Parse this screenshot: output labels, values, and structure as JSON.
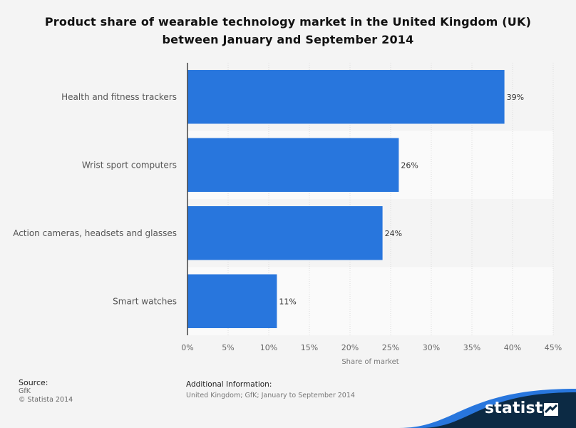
{
  "title_line1": "Product share of wearable technology market in the United Kingdom (UK)",
  "title_line2": "between January and September 2014",
  "chart_data": {
    "type": "bar",
    "orientation": "horizontal",
    "categories": [
      "Health and fitness trackers",
      "Wrist sport computers",
      "Action cameras, headsets and glasses",
      "Smart watches"
    ],
    "values": [
      39,
      26,
      24,
      11
    ],
    "data_labels": [
      "39%",
      "26%",
      "24%",
      "11%"
    ],
    "xlabel": "Share of market",
    "ylabel": "",
    "xlim": [
      0,
      45
    ],
    "ticks": [
      0,
      5,
      10,
      15,
      20,
      25,
      30,
      35,
      40,
      45
    ],
    "tick_labels": [
      "0%",
      "5%",
      "10%",
      "15%",
      "20%",
      "25%",
      "30%",
      "35%",
      "40%",
      "45%"
    ],
    "grid": true,
    "bar_color": "#2876dd"
  },
  "footer": {
    "source_label": "Source:",
    "source_value": "GfK",
    "copyright": "© Statista 2014",
    "additional_label": "Additional Information:",
    "additional_value": "United Kingdom; GfK; January to September 2014"
  },
  "brand": {
    "name": "statista",
    "band_color": "#0c2a44",
    "accent_color": "#2876dd"
  }
}
